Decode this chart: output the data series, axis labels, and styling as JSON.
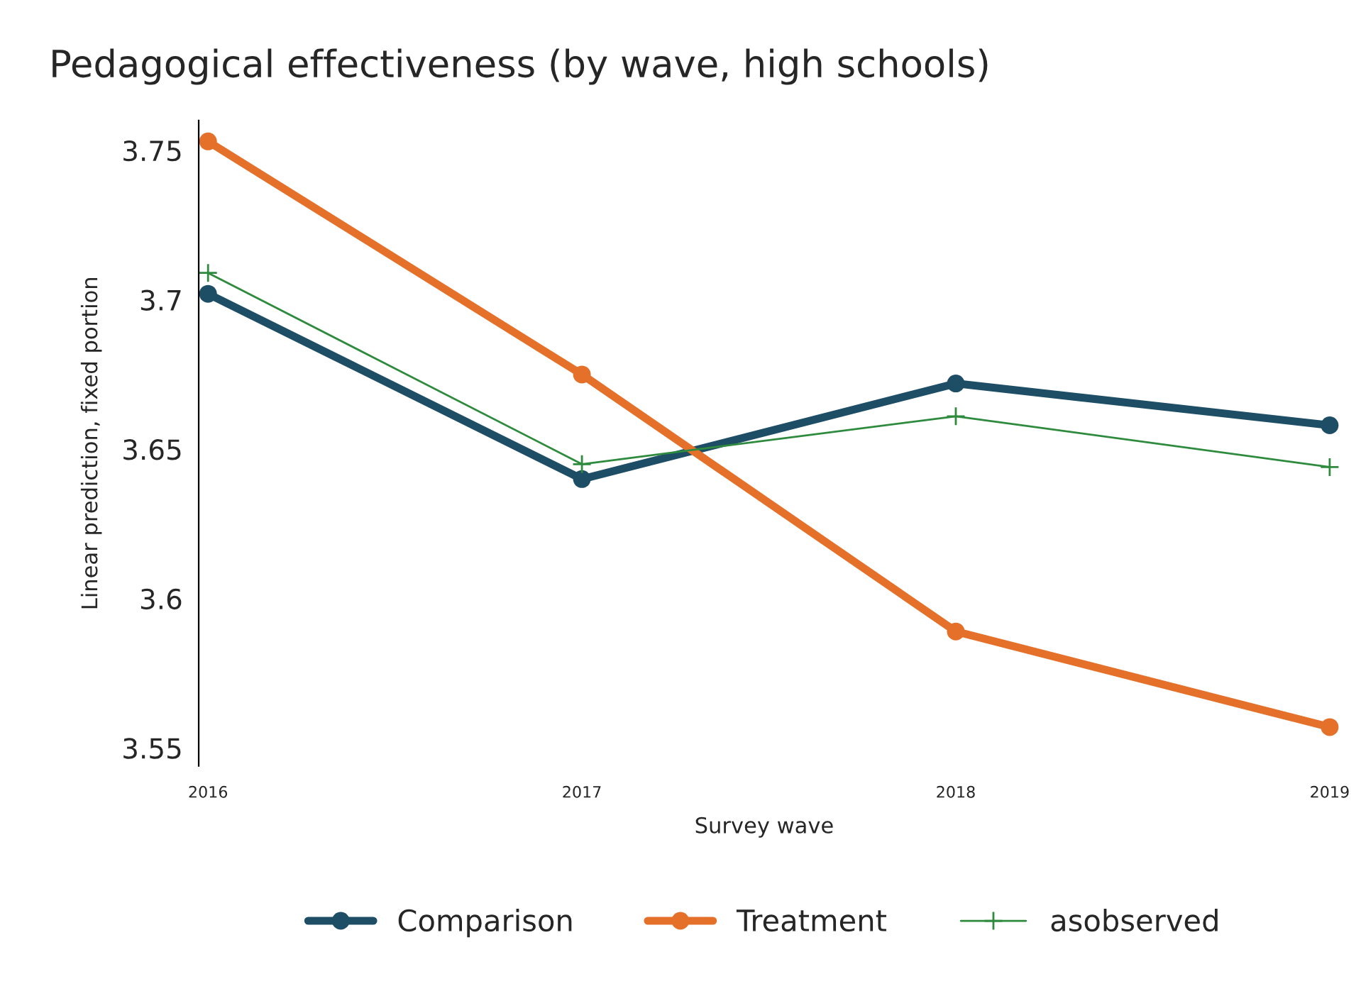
{
  "chart_data": {
    "type": "line",
    "title": "Pedagogical effectiveness (by wave, high schools)",
    "xlabel": "Survey wave",
    "ylabel": "Linear prediction, fixed portion",
    "x": [
      2016,
      2017,
      2018,
      2019
    ],
    "series": [
      {
        "name": "Comparison",
        "color": "#1d4e66",
        "marker": "circle",
        "values": [
          3.702,
          3.64,
          3.672,
          3.658
        ]
      },
      {
        "name": "Treatment",
        "color": "#e5702a",
        "marker": "circle",
        "values": [
          3.753,
          3.675,
          3.589,
          3.557
        ]
      },
      {
        "name": "asobserved",
        "color": "#2e8b3e",
        "marker": "cross",
        "values": [
          3.709,
          3.645,
          3.661,
          3.644
        ]
      }
    ],
    "xlim": [
      2015.975,
      2019
    ],
    "xticks": [
      2016,
      2017,
      2018,
      2019
    ],
    "ylim": [
      3.544,
      3.76
    ],
    "yticks": [
      3.55,
      3.6,
      3.65,
      3.7,
      3.75
    ],
    "grid": false,
    "legend": "bottom",
    "line_style": "solid"
  }
}
